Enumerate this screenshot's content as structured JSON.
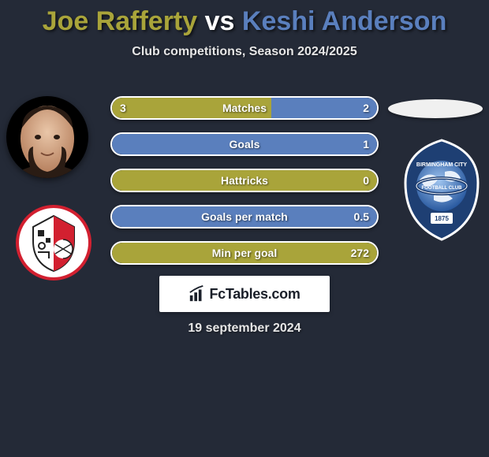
{
  "title": {
    "player1": "Joe Rafferty",
    "vs": "vs",
    "player2": "Keshi Anderson",
    "player1_color": "#a9a43a",
    "vs_color": "#ffffff",
    "player2_color": "#5a7fbd"
  },
  "subtitle": "Club competitions, Season 2024/2025",
  "fctables_label": "FcTables.com",
  "date": "19 september 2024",
  "stats": [
    {
      "label": "Matches",
      "left_val": "3",
      "right_val": "2",
      "left_pct": 60,
      "right_pct": 40
    },
    {
      "label": "Goals",
      "left_val": "",
      "right_val": "1",
      "left_pct": 0,
      "right_pct": 100
    },
    {
      "label": "Hattricks",
      "left_val": "",
      "right_val": "0",
      "left_pct": 100,
      "right_pct": 0
    },
    {
      "label": "Goals per match",
      "left_val": "",
      "right_val": "0.5",
      "left_pct": 0,
      "right_pct": 100
    },
    {
      "label": "Min per goal",
      "left_val": "",
      "right_val": "272",
      "left_pct": 100,
      "right_pct": 0
    }
  ],
  "colors": {
    "left_fill": "#a9a43a",
    "right_fill": "#5a7fbd",
    "pill_border": "#ffffff",
    "background": "#242a37"
  },
  "left_player": {
    "avatar_alt": "player-avatar",
    "club_alt": "rotherham-badge"
  },
  "right_player": {
    "avatar_alt": "player-avatar-blank",
    "club_alt": "birmingham-badge"
  }
}
